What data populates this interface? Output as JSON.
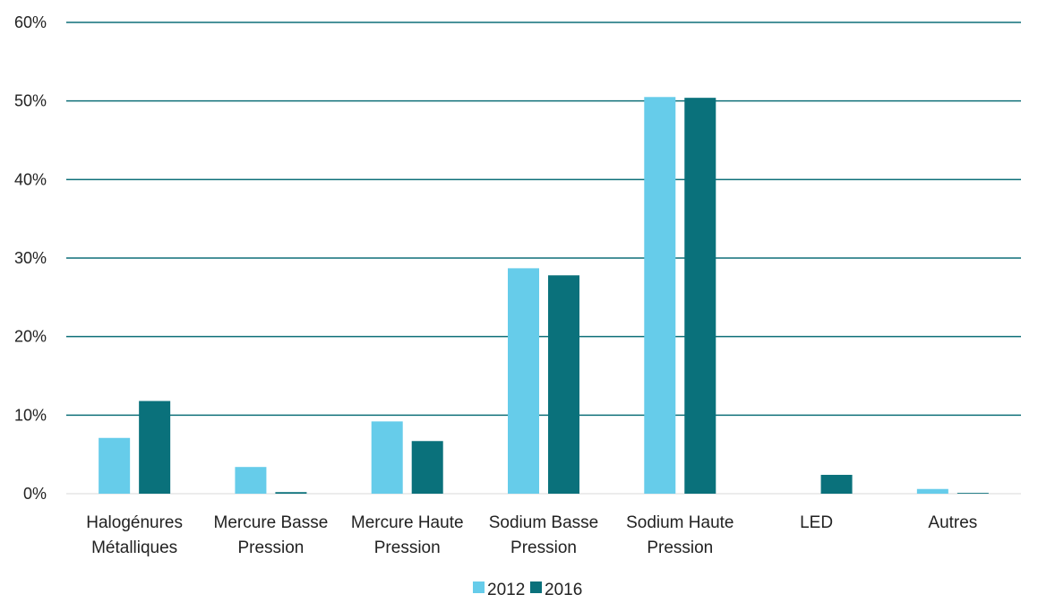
{
  "chart_data": {
    "type": "bar",
    "categories": [
      [
        "Halogénures",
        "Métalliques"
      ],
      [
        "Mercure Basse",
        "Pression"
      ],
      [
        "Mercure Haute",
        "Pression"
      ],
      [
        "Sodium Basse",
        "Pression"
      ],
      [
        "Sodium Haute",
        "Pression"
      ],
      [
        "LED"
      ],
      [
        "Autres"
      ]
    ],
    "series": [
      {
        "name": "2012",
        "color": "#66ccea",
        "values": [
          0.071,
          0.034,
          0.092,
          0.287,
          0.505,
          0.0,
          0.006
        ]
      },
      {
        "name": "2016",
        "color": "#0a717b",
        "values": [
          0.118,
          0.002,
          0.067,
          0.278,
          0.504,
          0.024,
          0.001
        ]
      }
    ],
    "y_ticks": [
      "0%",
      "10%",
      "20%",
      "30%",
      "40%",
      "50%",
      "60%"
    ],
    "ylim": [
      0,
      0.6
    ],
    "grid": true,
    "gridline_color": "#0e6f79",
    "legend_position": "bottom-center"
  }
}
